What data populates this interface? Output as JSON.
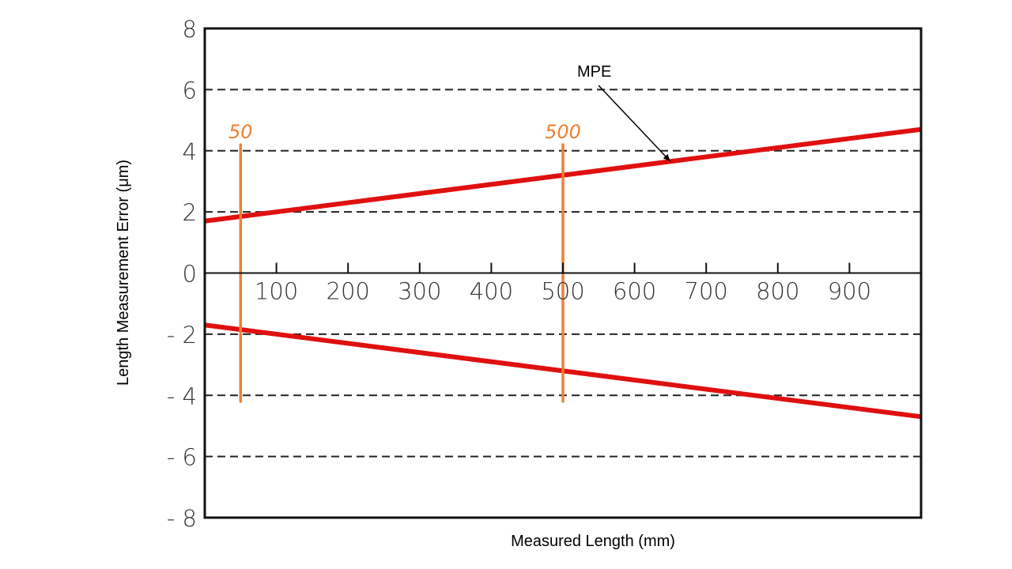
{
  "chart_data": {
    "type": "line",
    "title": "",
    "xlabel": "Measured Length (mm)",
    "ylabel": "Length Measurement Error (μm)",
    "xlim": [
      0,
      1000
    ],
    "ylim": [
      -8,
      8
    ],
    "x_ticks": [
      100,
      200,
      300,
      400,
      500,
      600,
      700,
      800,
      900
    ],
    "x_tick_labels": [
      "100",
      "200",
      "300",
      "400",
      "500",
      "600",
      "700",
      "800",
      "900"
    ],
    "y_ticks": [
      8,
      6,
      4,
      2,
      0,
      -2,
      -4,
      -6,
      -8
    ],
    "y_tick_labels": [
      "8",
      "6",
      "4",
      "2",
      "0",
      "- 2",
      "- 4",
      "- 6",
      "- 8"
    ],
    "grid": {
      "y_dashed": [
        6,
        4,
        2,
        -2,
        -4,
        -6
      ]
    },
    "series": [
      {
        "name": "MPE upper",
        "x": [
          0,
          1000
        ],
        "y": [
          1.7,
          4.7
        ],
        "color": "#e01010"
      },
      {
        "name": "MPE lower",
        "x": [
          0,
          1000
        ],
        "y": [
          -1.7,
          -4.7
        ],
        "color": "#e01010"
      }
    ],
    "markers": [
      {
        "label": "50",
        "x": 50,
        "y_range": [
          -4.2,
          4.2
        ],
        "color": "#f08030"
      },
      {
        "label": "500",
        "x": 500,
        "y_range": [
          -4.2,
          4.2
        ],
        "color": "#f08030"
      }
    ],
    "annotations": [
      {
        "text": "MPE",
        "points_to": {
          "x": 650,
          "y": 3.65
        }
      }
    ]
  }
}
